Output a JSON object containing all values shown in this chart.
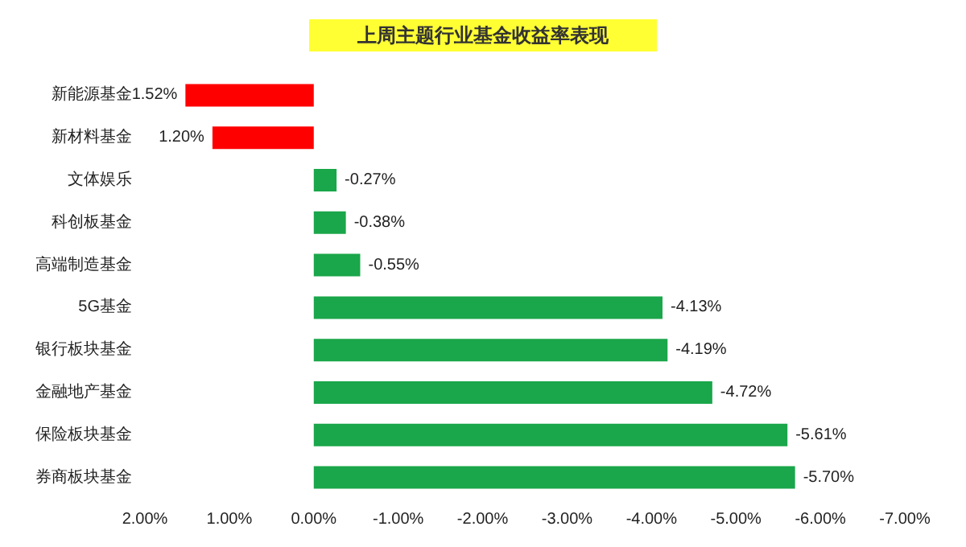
{
  "chart_data": {
    "type": "bar",
    "orientation": "horizontal",
    "title": "上周主题行业基金收益率表现",
    "categories": [
      "新能源基金",
      "新材料基金",
      "文体娱乐",
      "科创板基金",
      "高端制造基金",
      "5G基金",
      "银行板块基金",
      "金融地产基金",
      "保险板块基金",
      "券商板块基金"
    ],
    "values": [
      1.52,
      1.2,
      -0.27,
      -0.38,
      -0.55,
      -4.13,
      -4.19,
      -4.72,
      -5.61,
      -5.7
    ],
    "value_labels": [
      "1.52%",
      "1.20%",
      "-0.27%",
      "-0.38%",
      "-0.55%",
      "-4.13%",
      "-4.19%",
      "-4.72%",
      "-5.61%",
      "-5.70%"
    ],
    "colors": [
      "#ff0000",
      "#ff0000",
      "#1aa64a",
      "#1aa64a",
      "#1aa64a",
      "#1aa64a",
      "#1aa64a",
      "#1aa64a",
      "#1aa64a",
      "#1aa64a"
    ],
    "xlim": [
      2,
      -7
    ],
    "xticks": [
      {
        "value": 2,
        "label": "2.00%"
      },
      {
        "value": 1,
        "label": "1.00%"
      },
      {
        "value": 0,
        "label": "0.00%"
      },
      {
        "value": -1,
        "label": "-1.00%"
      },
      {
        "value": -2,
        "label": "-2.00%"
      },
      {
        "value": -3,
        "label": "-3.00%"
      },
      {
        "value": -4,
        "label": "-4.00%"
      },
      {
        "value": -5,
        "label": "-5.00%"
      },
      {
        "value": -6,
        "label": "-6.00%"
      },
      {
        "value": -7,
        "label": "-7.00%"
      }
    ],
    "grid": false
  }
}
